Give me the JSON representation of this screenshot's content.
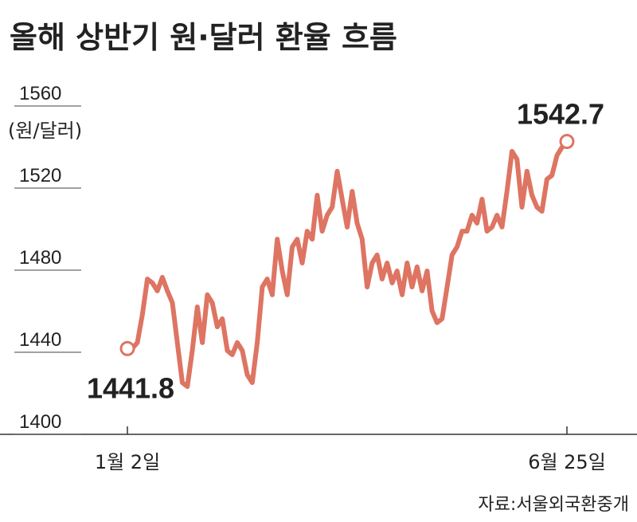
{
  "chart_data": {
    "type": "line",
    "title": "올해 상반기 원·달러 환율 흐름",
    "y_unit": "(원/달러)",
    "source": "자료:서울외국환중개",
    "categories": [
      "1월 2일",
      null,
      null,
      null,
      null,
      null,
      null,
      null,
      null,
      null,
      null,
      null,
      null,
      null,
      null,
      null,
      null,
      null,
      null,
      null,
      null,
      null,
      null,
      null,
      null,
      null,
      null,
      null,
      null,
      null,
      null,
      null,
      null,
      null,
      null,
      null,
      null,
      null,
      null,
      null,
      null,
      null,
      null,
      null,
      null,
      null,
      null,
      null,
      null,
      null,
      null,
      null,
      null,
      null,
      null,
      null,
      null,
      null,
      null,
      null,
      null,
      null,
      null,
      null,
      null,
      null,
      null,
      null,
      null,
      null,
      null,
      null,
      null,
      null,
      null,
      null,
      null,
      null,
      null,
      null,
      null,
      null,
      null,
      null,
      null,
      null,
      null,
      null,
      "6월 25일"
    ],
    "values": [
      1441.8,
      1441.9,
      1444.7,
      1458.3,
      1475.7,
      1473.8,
      1469.9,
      1476.5,
      1469.9,
      1464.1,
      1444.7,
      1425.2,
      1423.3,
      1440.8,
      1462.1,
      1444.7,
      1468.0,
      1464.1,
      1452.4,
      1456.3,
      1440.8,
      1438.8,
      1444.7,
      1440.8,
      1429.1,
      1425.2,
      1444.7,
      1471.8,
      1475.7,
      1468.0,
      1495.1,
      1479.6,
      1468.0,
      1491.3,
      1495.1,
      1483.5,
      1499.0,
      1495.1,
      1516.5,
      1499.0,
      1506.8,
      1510.7,
      1528.2,
      1514.6,
      1501.0,
      1518.4,
      1502.9,
      1495.1,
      1471.8,
      1483.5,
      1487.4,
      1475.7,
      1483.5,
      1473.8,
      1479.6,
      1468.0,
      1483.5,
      1471.8,
      1481.6,
      1469.9,
      1479.6,
      1460.2,
      1454.4,
      1456.3,
      1471.8,
      1487.4,
      1491.3,
      1499.0,
      1499.0,
      1506.8,
      1502.9,
      1514.6,
      1499.0,
      1501.0,
      1506.8,
      1501.0,
      1518.4,
      1537.9,
      1534.0,
      1510.7,
      1528.2,
      1516.5,
      1510.7,
      1508.7,
      1524.3,
      1526.2,
      1535.9,
      1539.8,
      1542.7
    ],
    "color": "#de7462",
    "ylim": [
      1400,
      1560
    ],
    "yticks": [
      1400,
      1440,
      1480,
      1520,
      1560
    ]
  }
}
